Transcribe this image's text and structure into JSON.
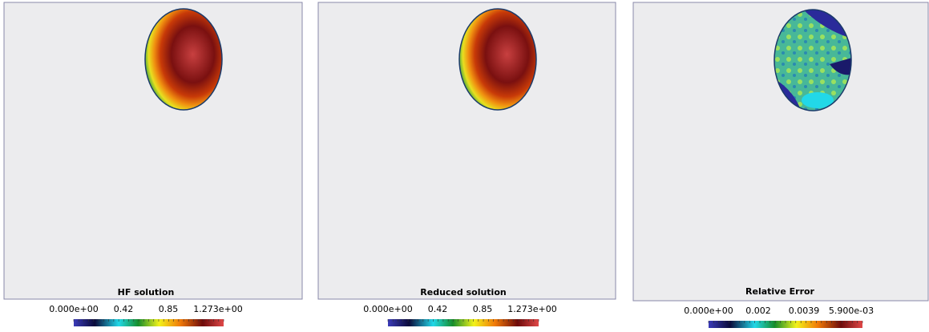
{
  "panels": [
    {
      "title": "HF solution",
      "colorbar": [
        "0.000e+00",
        "0.42",
        "0.85",
        "1.273e+00"
      ]
    },
    {
      "title": "Reduced solution",
      "colorbar": [
        "0.000e+00",
        "0.42",
        "0.85",
        "1.273e+00"
      ]
    },
    {
      "title": "Relative Error",
      "colorbar": [
        "0.000e+00",
        "0.002",
        "0.0039",
        "5.900e-03"
      ]
    }
  ]
}
